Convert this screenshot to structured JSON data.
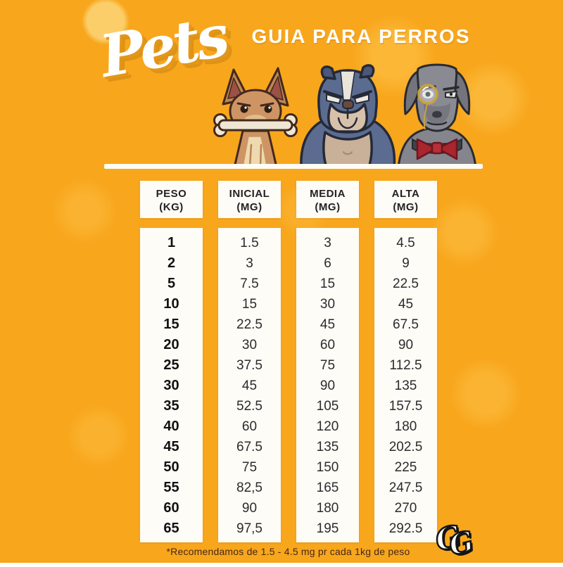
{
  "poster": {
    "logo": "Pets",
    "title": "GUIA PARA PERROS",
    "footnote": "*Recomendamos de 1.5 - 4.5 mg pr cada 1kg de peso",
    "watermark_g1": "G",
    "watermark_g2": "G"
  },
  "colors": {
    "background": "#F8A61C",
    "panel_white": "#FDFCF7",
    "text_dark": "#2B2B2B",
    "title_white": "#FFFFFF",
    "footnote_brown": "#46281A",
    "bulldog_blue": "#5C6C90",
    "chihuahua_tan": "#CE9463",
    "dane_gray": "#8A8A93",
    "bowtie_red": "#A8262E",
    "monocle_gold": "#C9A23B"
  },
  "dogs": [
    {
      "name": "chihuahua-with-bone"
    },
    {
      "name": "bulldog"
    },
    {
      "name": "great-dane-with-monocle"
    }
  ],
  "table": {
    "columns": [
      {
        "header": "PESO",
        "unit": "(KG)",
        "emphasis": true,
        "values": [
          "1",
          "2",
          "5",
          "10",
          "15",
          "20",
          "25",
          "30",
          "35",
          "40",
          "45",
          "50",
          "55",
          "60",
          "65"
        ]
      },
      {
        "header": "INICIAL",
        "unit": "(MG)",
        "emphasis": false,
        "values": [
          "1.5",
          "3",
          "7.5",
          "15",
          "22.5",
          "30",
          "37.5",
          "45",
          "52.5",
          "60",
          "67.5",
          "75",
          "82,5",
          "90",
          "97,5"
        ]
      },
      {
        "header": "MEDIA",
        "unit": "(MG)",
        "emphasis": false,
        "values": [
          "3",
          "6",
          "15",
          "30",
          "45",
          "60",
          "75",
          "90",
          "105",
          "120",
          "135",
          "150",
          "165",
          "180",
          "195"
        ]
      },
      {
        "header": "ALTA",
        "unit": "(MG)",
        "emphasis": false,
        "values": [
          "4.5",
          "9",
          "22.5",
          "45",
          "67.5",
          "90",
          "112.5",
          "135",
          "157.5",
          "180",
          "202.5",
          "225",
          "247.5",
          "270",
          "292.5"
        ]
      }
    ]
  },
  "chart_data": {
    "type": "table",
    "title": "GUIA PARA PERROS",
    "columns": [
      "PESO (KG)",
      "INICIAL (MG)",
      "MEDIA (MG)",
      "ALTA (MG)"
    ],
    "rows": [
      [
        1,
        1.5,
        3,
        4.5
      ],
      [
        2,
        3,
        6,
        9
      ],
      [
        5,
        7.5,
        15,
        22.5
      ],
      [
        10,
        15,
        30,
        45
      ],
      [
        15,
        22.5,
        45,
        67.5
      ],
      [
        20,
        30,
        60,
        90
      ],
      [
        25,
        37.5,
        75,
        112.5
      ],
      [
        30,
        45,
        90,
        135
      ],
      [
        35,
        52.5,
        105,
        157.5
      ],
      [
        40,
        60,
        120,
        180
      ],
      [
        45,
        67.5,
        135,
        202.5
      ],
      [
        50,
        75,
        150,
        225
      ],
      [
        55,
        82.5,
        165,
        247.5
      ],
      [
        60,
        90,
        180,
        270
      ],
      [
        65,
        97.5,
        195,
        292.5
      ]
    ],
    "footnote": "*Recomendamos de 1.5 - 4.5 mg pr cada 1kg de peso"
  }
}
